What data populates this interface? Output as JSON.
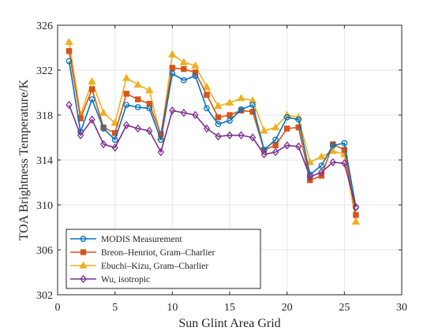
{
  "chart_data": {
    "type": "line",
    "xlabel": "Sun Glint Area Grid",
    "ylabel": "TOA Brightness Temperature/K",
    "xlim": [
      0,
      30
    ],
    "ylim": [
      302,
      326
    ],
    "xticks": [
      0,
      5,
      10,
      15,
      20,
      25,
      30
    ],
    "yticks": [
      302,
      306,
      310,
      314,
      318,
      322,
      326
    ],
    "grid": true,
    "legend_position": "bottom-left",
    "x": [
      1,
      2,
      3,
      4,
      5,
      6,
      7,
      8,
      9,
      10,
      11,
      12,
      13,
      14,
      15,
      16,
      17,
      18,
      19,
      20,
      21,
      22,
      23,
      24,
      25,
      26
    ],
    "series": [
      {
        "name": "MODIS Measurement",
        "color": "#0072BD",
        "marker": "circle",
        "values": [
          322.8,
          316.5,
          319.4,
          316.8,
          315.8,
          318.9,
          318.7,
          318.6,
          315.8,
          321.7,
          321.1,
          321.5,
          318.6,
          317.2,
          317.5,
          318.5,
          318.9,
          314.9,
          315.8,
          317.8,
          317.6,
          312.7,
          313.5,
          315.3,
          315.5,
          309.8
        ]
      },
      {
        "name": "Breon–Henriot, Gram–Charlier",
        "color": "#D95319",
        "marker": "square",
        "values": [
          323.7,
          317.7,
          320.3,
          316.9,
          316.4,
          319.9,
          319.4,
          319.0,
          316.3,
          322.2,
          322.1,
          321.8,
          319.8,
          317.8,
          318.0,
          318.4,
          318.3,
          314.9,
          315.3,
          316.8,
          316.9,
          312.2,
          312.6,
          315.4,
          314.9,
          309.1
        ]
      },
      {
        "name": "Ebuchi–Kizu, Gram–Charlier",
        "color": "#EDB120",
        "marker": "triangle",
        "values": [
          324.5,
          318.0,
          321.0,
          318.2,
          317.3,
          321.3,
          320.7,
          320.2,
          316.0,
          323.4,
          322.7,
          322.4,
          320.5,
          318.8,
          319.1,
          319.5,
          319.3,
          316.6,
          316.9,
          318.0,
          317.8,
          313.8,
          314.3,
          314.8,
          314.5,
          308.5
        ]
      },
      {
        "name": "Wu, isotropic",
        "color": "#7E2F8E",
        "marker": "diamond",
        "values": [
          318.9,
          316.2,
          317.6,
          315.4,
          315.1,
          317.1,
          316.8,
          316.6,
          314.7,
          318.4,
          318.2,
          318.0,
          316.8,
          316.1,
          316.2,
          316.2,
          316.0,
          314.5,
          314.7,
          315.3,
          315.2,
          312.5,
          312.9,
          313.8,
          313.7,
          309.8
        ]
      }
    ]
  }
}
